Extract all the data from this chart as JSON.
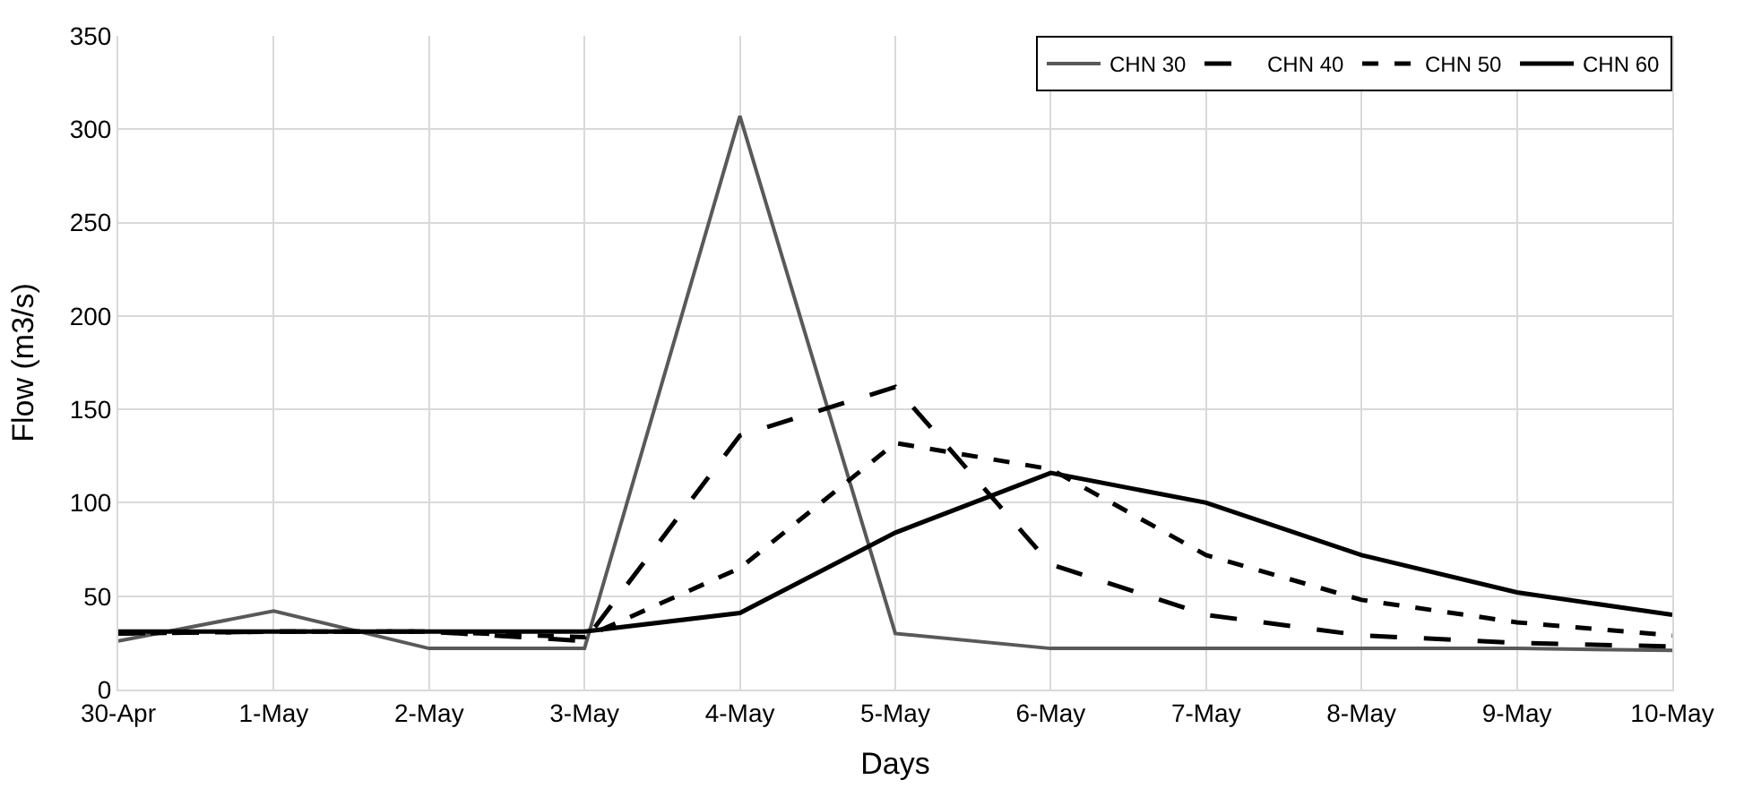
{
  "chart_data": {
    "type": "line",
    "xlabel": "Days",
    "ylabel": "Flow (m3/s)",
    "categories": [
      "30-Apr",
      "1-May",
      "2-May",
      "3-May",
      "4-May",
      "5-May",
      "6-May",
      "7-May",
      "8-May",
      "9-May",
      "10-May"
    ],
    "series": [
      {
        "name": "CHN 30",
        "color": "#595959",
        "line_style": "solid",
        "values": [
          26,
          42,
          22,
          22,
          307,
          30,
          22,
          22,
          22,
          22,
          21
        ]
      },
      {
        "name": "CHN 40",
        "color": "#000000",
        "line_style": "dashed",
        "values": [
          30,
          31,
          31,
          26,
          136,
          162,
          67,
          40,
          29,
          25,
          23
        ]
      },
      {
        "name": "CHN 50",
        "color": "#000000",
        "line_style": "dotted",
        "values": [
          30,
          31,
          31,
          28,
          65,
          132,
          118,
          72,
          48,
          36,
          29
        ]
      },
      {
        "name": "CHN 60",
        "color": "#000000",
        "line_style": "solid",
        "values": [
          31,
          31,
          31,
          31,
          41,
          84,
          116,
          100,
          72,
          52,
          40
        ]
      }
    ],
    "ylim": [
      0,
      350
    ],
    "yticks": [
      0,
      50,
      100,
      150,
      200,
      250,
      300,
      350
    ],
    "grid": true,
    "legend": "top right",
    "marker": "none"
  }
}
